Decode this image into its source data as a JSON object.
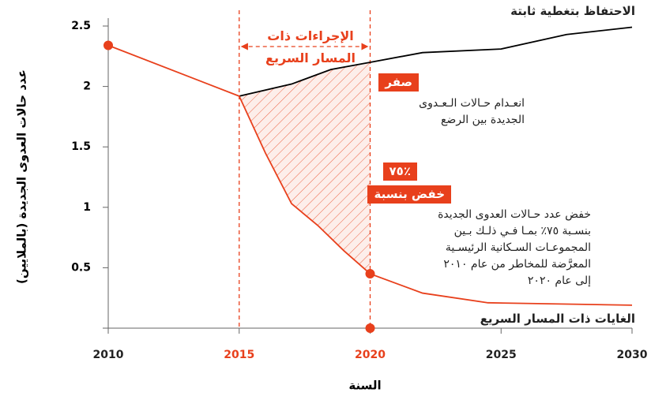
{
  "chart_data": {
    "type": "line",
    "xlabel": "السنة",
    "ylabel": "عدد حالات العدوى الجديدة (بالملايين)",
    "xlim": [
      2010,
      2030
    ],
    "xticks": [
      2010,
      2015,
      2020,
      2025,
      2030
    ],
    "ylim": [
      0,
      2.5
    ],
    "yticks": [
      0.5,
      1,
      1.5,
      2,
      2.5
    ],
    "highlight": {
      "label_lines": [
        "الإجراءات ذات",
        "المسار السريع"
      ],
      "range": [
        2015,
        2020
      ],
      "color": "#e8401c"
    },
    "series": [
      {
        "name": "الاحتفاظ بتغطية ثابتة",
        "color": "#000000",
        "x": [
          2015,
          2017,
          2018.5,
          2020,
          2022,
          2025,
          2027.5,
          2030
        ],
        "values": [
          1.92,
          2.02,
          2.14,
          2.2,
          2.28,
          2.31,
          2.43,
          2.49
        ]
      },
      {
        "name": "الغايات ذات المسار السريع",
        "color": "#e8401c",
        "x": [
          2010,
          2015,
          2016,
          2017,
          2018,
          2019,
          2020,
          2022,
          2024.5,
          2030
        ],
        "values": [
          2.34,
          1.92,
          1.45,
          1.03,
          0.85,
          0.64,
          0.45,
          0.29,
          0.21,
          0.19
        ]
      }
    ],
    "annotations": {
      "zero_tag": "صفر",
      "zero_text": [
        "انعـدام حـالات الـعـدوى",
        "الجديدة بين الرضع"
      ],
      "percent_tag": "٪٧٥",
      "reduce_tag": "خفض بنسبة",
      "reduce_text": [
        "خفض عدد حـالات العدوى الجديدة",
        "بنسـبة ٧٥٪ بمـا فـي ذلـك بـين",
        "المجموعـات السـكانية الرئيسـية",
        "المعرَّضة للمخاطر من عام ٢٠١٠",
        "إلى عام ٢٠٢٠"
      ]
    }
  }
}
